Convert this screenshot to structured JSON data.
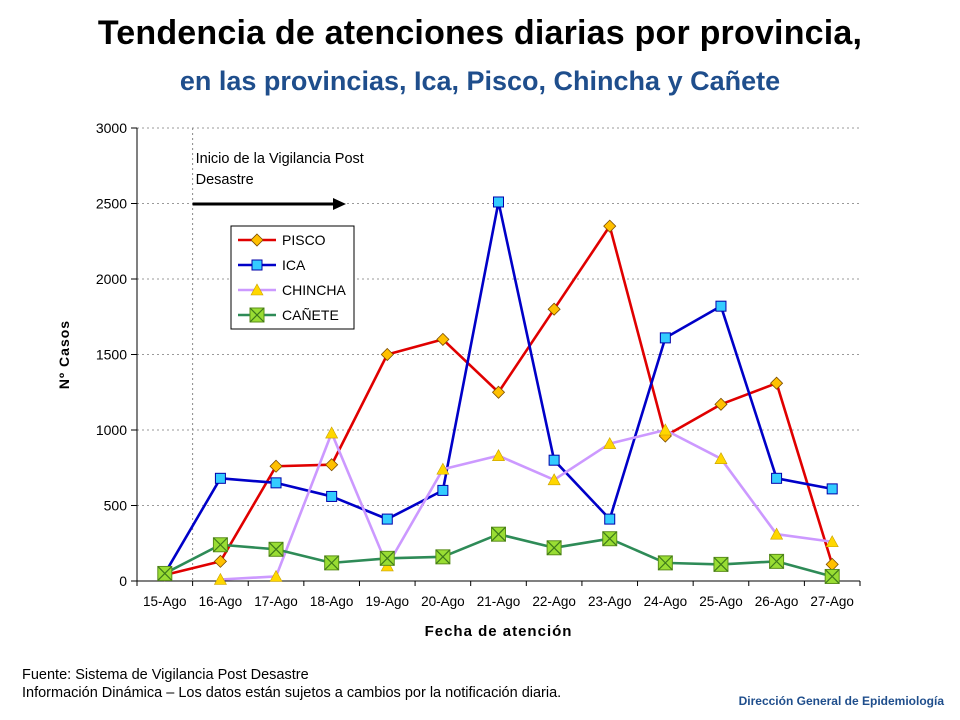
{
  "header": {
    "title": "Tendencia de atenciones diarias por provincia,",
    "subtitle": "en las provincias, Ica, Pisco, Chincha y Cañete"
  },
  "chart_data": {
    "type": "line",
    "xlabel": "Fecha de atención",
    "ylabel": "Nº Casos",
    "ylim": [
      0,
      3000
    ],
    "yticks": [
      0,
      500,
      1000,
      1500,
      2000,
      2500,
      3000
    ],
    "categories": [
      "15-Ago",
      "16-Ago",
      "17-Ago",
      "18-Ago",
      "19-Ago",
      "20-Ago",
      "21-Ago",
      "22-Ago",
      "23-Ago",
      "24-Ago",
      "25-Ago",
      "26-Ago",
      "27-Ago"
    ],
    "annotation": {
      "lines": [
        "Inicio de la Vigilancia Post",
        "Desastre"
      ]
    },
    "series": [
      {
        "name": "PISCO",
        "color": "#e00000",
        "marker": "diamond",
        "marker_fill": "#ffc000",
        "values": [
          40,
          130,
          760,
          770,
          1500,
          1600,
          1250,
          1800,
          2350,
          960,
          1170,
          1310,
          110
        ]
      },
      {
        "name": "ICA",
        "color": "#0000c8",
        "marker": "square",
        "marker_fill": "#33ccff",
        "values": [
          50,
          680,
          650,
          560,
          410,
          600,
          2510,
          800,
          410,
          1610,
          1820,
          680,
          610
        ]
      },
      {
        "name": "CHINCHA",
        "color": "#cc99ff",
        "marker": "triangle",
        "marker_fill": "#ffd700",
        "values": [
          null,
          10,
          30,
          980,
          100,
          740,
          830,
          670,
          910,
          1000,
          810,
          310,
          260
        ]
      },
      {
        "name": "CAÑETE",
        "color": "#2e8b57",
        "marker": "xsquare",
        "marker_fill": "#99dd33",
        "values": [
          50,
          240,
          210,
          120,
          150,
          160,
          310,
          220,
          280,
          120,
          110,
          130,
          30
        ]
      }
    ]
  },
  "footer": {
    "source": "Fuente: Sistema de Vigilancia Post Desastre",
    "note": "Información Dinámica – Los datos están sujetos a cambios por la notificación diaria.",
    "org": "Dirección General de Epidemiología"
  }
}
